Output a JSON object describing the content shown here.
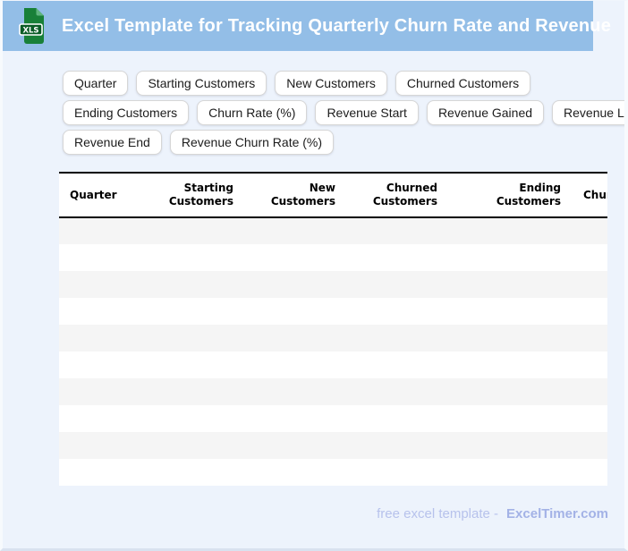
{
  "app": {
    "title": "Excel Template for Tracking Quarterly Churn Rate and Revenue",
    "icon_label": "XLS"
  },
  "chips": {
    "rows": [
      [
        "Quarter",
        "Starting Customers",
        "New Customers",
        "Churned Customers"
      ],
      [
        "Ending Customers",
        "Churn Rate (%)",
        "Revenue Start",
        "Revenue Gained",
        "Revenue Lost"
      ],
      [
        "Revenue End",
        "Revenue Churn Rate (%)"
      ]
    ]
  },
  "table": {
    "columns": [
      "Quarter",
      "Starting Customers",
      "New Customers",
      "Churned Customers",
      "Ending Customers",
      "Churn Rate (%)"
    ],
    "rows": [
      [
        "",
        "",
        "",
        "",
        "",
        ""
      ],
      [
        "",
        "",
        "",
        "",
        "",
        ""
      ],
      [
        "",
        "",
        "",
        "",
        "",
        ""
      ],
      [
        "",
        "",
        "",
        "",
        "",
        ""
      ],
      [
        "",
        "",
        "",
        "",
        "",
        ""
      ],
      [
        "",
        "",
        "",
        "",
        "",
        ""
      ],
      [
        "",
        "",
        "",
        "",
        "",
        ""
      ],
      [
        "",
        "",
        "",
        "",
        "",
        ""
      ],
      [
        "",
        "",
        "",
        "",
        "",
        ""
      ],
      [
        "",
        "",
        "",
        "",
        "",
        ""
      ]
    ]
  },
  "footer": {
    "text": "free excel template -",
    "brand": "ExcelTimer.com"
  },
  "colors": {
    "appbar_blue": "#93bee7",
    "page_background": "#edf3fc",
    "row_stripe": "#f5f5f5",
    "header_border": "#000000",
    "footer_text": "#b7c2ec",
    "footer_brand": "#a3b2e6",
    "icon_green": "#188038",
    "icon_label_green": "#0a5c26"
  }
}
